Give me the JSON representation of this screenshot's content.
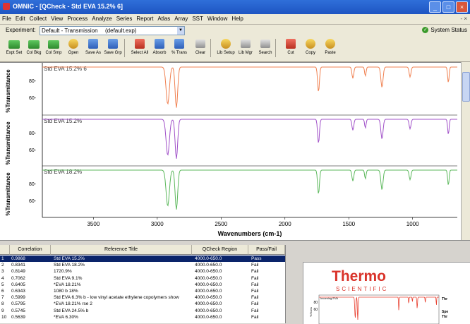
{
  "window": {
    "title": "OMNIC - [QCheck - Std EVA 15.2% 6]"
  },
  "menu": [
    "File",
    "Edit",
    "Collect",
    "View",
    "Process",
    "Analyze",
    "Series",
    "Report",
    "Atlas",
    "Array",
    "SST",
    "Window",
    "Help"
  ],
  "mdi_controls": "- ×",
  "experiment": {
    "label": "Experiment:",
    "value": "Default - Transmission",
    "file": "(default.exp)"
  },
  "system_status": "System Status",
  "toolbar": [
    "Expt Set",
    "Col Bkg",
    "Col Smp",
    "Open",
    "Save As",
    "Save Grp",
    "Select All",
    "Absorb",
    "% Trans",
    "Clear",
    "Lib Setup",
    "Lib Mgr",
    "Search",
    "Cut",
    "Copy",
    "Paste"
  ],
  "plot": {
    "ylabel": "%Transmittance",
    "xlabel": "Wavenumbers (cm-1)",
    "xticks": [
      "3500",
      "3000",
      "2500",
      "2000",
      "1500",
      "1000"
    ],
    "panes": [
      {
        "label": "Std EVA 15.2% 6",
        "color": "#f08050",
        "yticks": [
          "80-",
          "60-"
        ]
      },
      {
        "label": "Std EVA 15.2%",
        "color": "#a050c8",
        "yticks": [
          "80-",
          "60-"
        ]
      },
      {
        "label": "Std EVA 18.2%",
        "color": "#5cb85c",
        "yticks": [
          "80-",
          "60-"
        ]
      }
    ]
  },
  "results": {
    "headers": [
      "Correlation",
      "Reference Title",
      "QCheck Region",
      "Pass/Fail"
    ],
    "rows": [
      [
        "1",
        "0.9868",
        "Std EVA 15.2%",
        "4000.0-650.0",
        "Pass"
      ],
      [
        "2",
        "0.8341",
        "Std EVA 18.2%",
        "4000.0-650.0",
        "Fail"
      ],
      [
        "3",
        "0.8149",
        "1720.9%",
        "4000.0-650.0",
        "Fail"
      ],
      [
        "4",
        "0.7062",
        "Std EVA 9.1%",
        "4000.0-650.0",
        "Fail"
      ],
      [
        "5",
        "0.6405",
        "*EVA 18.21%",
        "4000.0-650.0",
        "Fail"
      ],
      [
        "6",
        "0.6343",
        "1080 b 18%",
        "4000.0-650.0",
        "Fail"
      ],
      [
        "7",
        "0.5999",
        "Std EVA 6.3% b - low vinyl acetate ethylene copolymers show",
        "4000.0-650.0",
        "Fail"
      ],
      [
        "8",
        "0.5795",
        "*EVA 18.21% rse 2",
        "4000.0-650.0",
        "Fail"
      ],
      [
        "9",
        "0.5745",
        "Std EVA 24.5% b",
        "4000.0-650.0",
        "Fail"
      ],
      [
        "10",
        "0.5639",
        "*EVA 6.30%",
        "4000.0-650.0",
        "Fail"
      ]
    ]
  },
  "report_preview": {
    "brand": "Thermo",
    "brand_sub": "SCIENTIFIC",
    "sample": "Incoming EVA",
    "axis_label": "%Trans",
    "yticks": [
      "80",
      "60"
    ],
    "side_labels": [
      "Thr",
      "Spe",
      "Thr"
    ]
  },
  "colors": {
    "titlebar": "#1e55c2",
    "selection": "#0a246a"
  }
}
